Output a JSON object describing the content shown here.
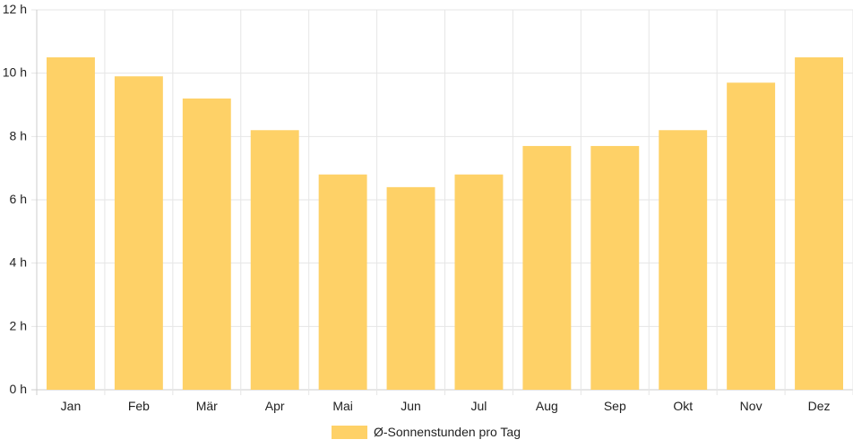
{
  "chart_data": {
    "type": "bar",
    "categories": [
      "Jan",
      "Feb",
      "Mär",
      "Apr",
      "Mai",
      "Jun",
      "Jul",
      "Aug",
      "Sep",
      "Okt",
      "Nov",
      "Dez"
    ],
    "series": [
      {
        "name": "Ø-Sonnenstunden pro Tag",
        "values": [
          10.5,
          9.9,
          9.2,
          8.2,
          6.8,
          6.4,
          6.8,
          7.7,
          7.7,
          8.2,
          9.7,
          10.5
        ],
        "color": "#fed167"
      }
    ],
    "ylim": [
      0,
      12
    ],
    "yticks": [
      0,
      2,
      4,
      6,
      8,
      10,
      12
    ],
    "y_unit_suffix": " h",
    "grid": true,
    "legend_position": "bottom",
    "colors": {
      "grid": "#e6e6e6",
      "axis": "#cccccc",
      "text": "#222222"
    }
  }
}
